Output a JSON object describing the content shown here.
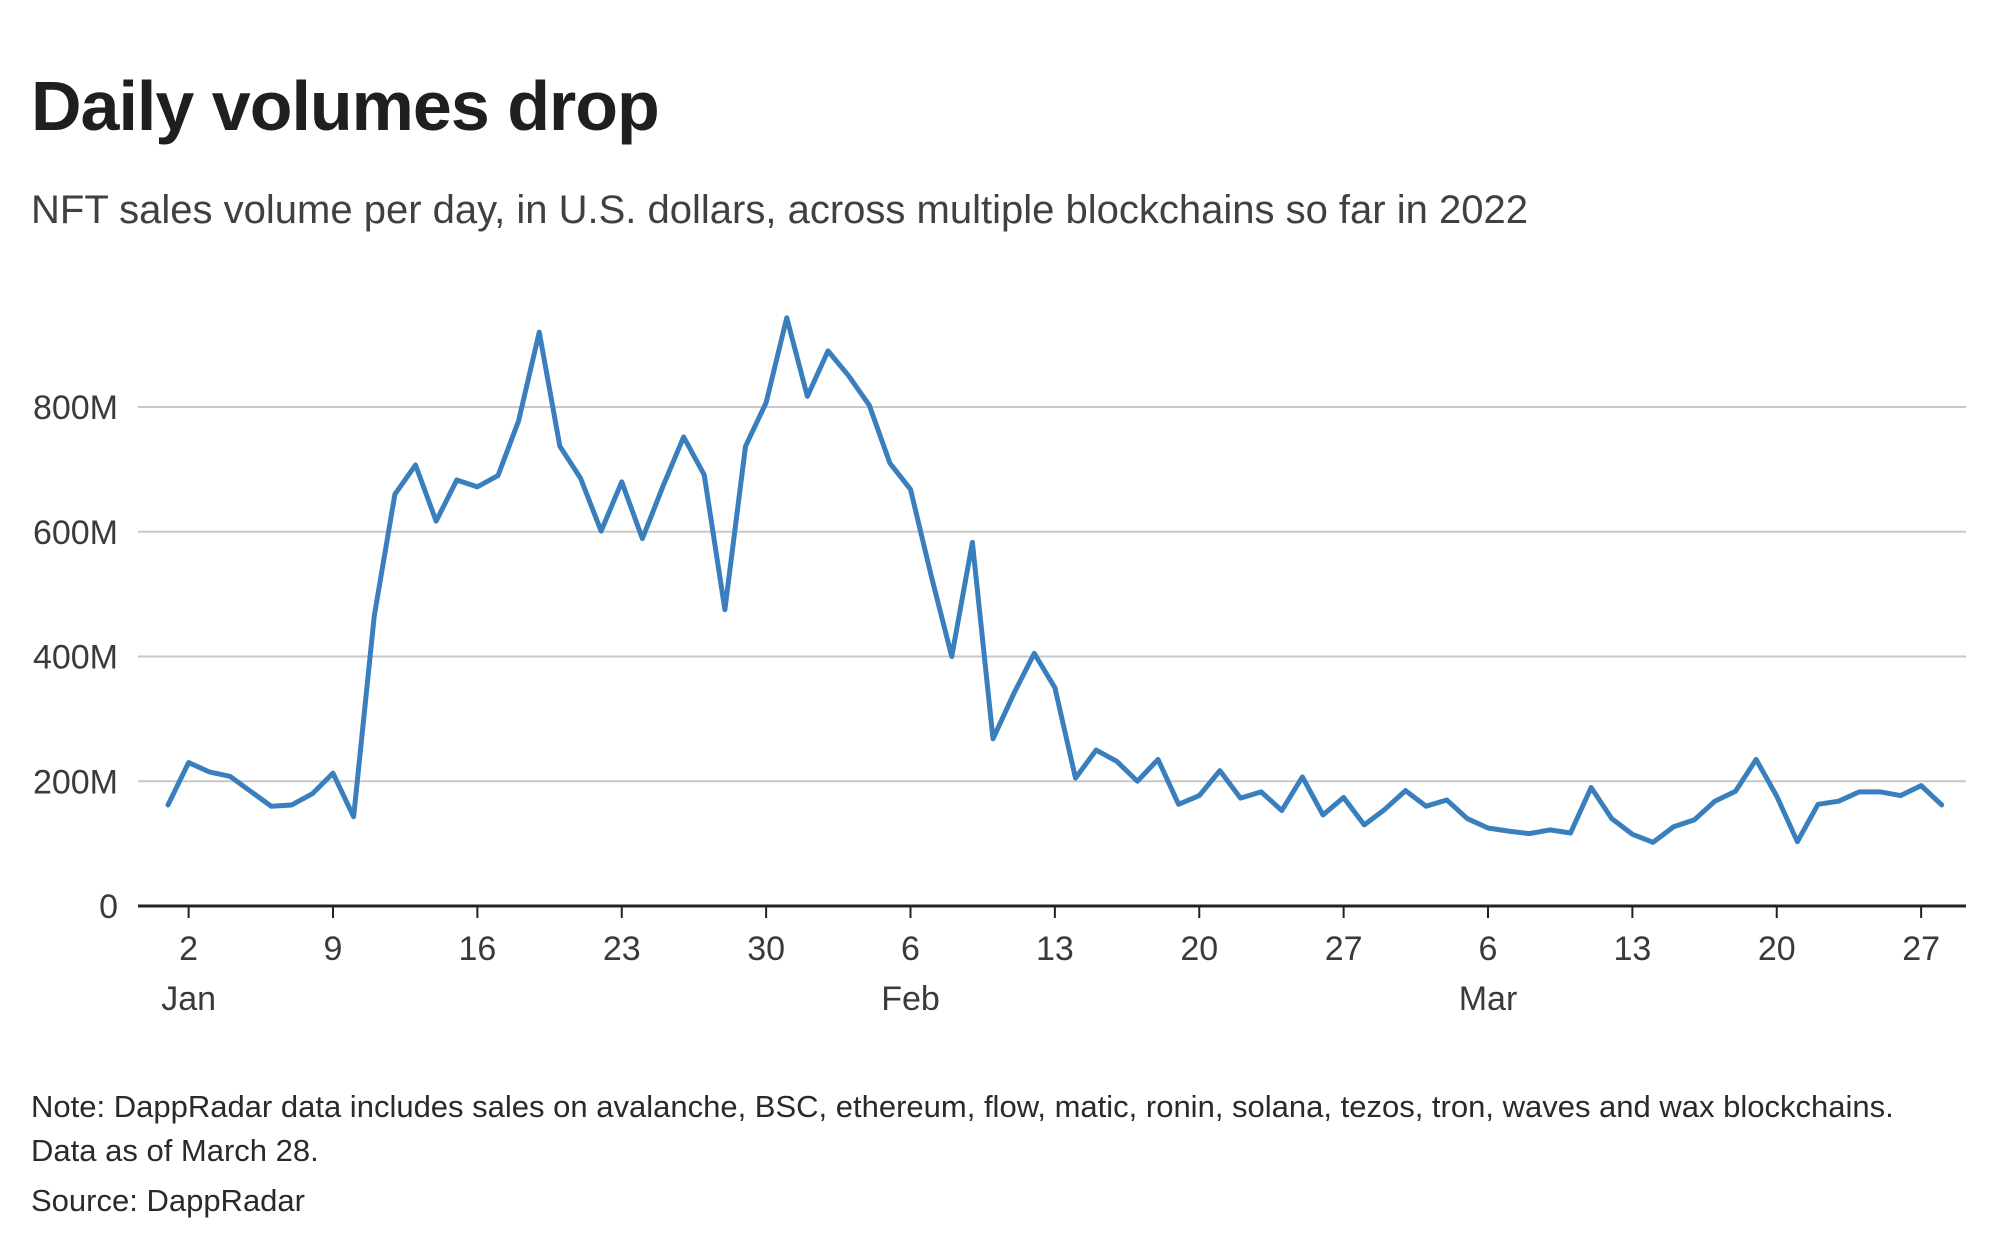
{
  "header": {
    "title": "Daily volumes drop",
    "subtitle": "NFT sales volume per day, in U.S. dollars, across multiple blockchains so far in 2022"
  },
  "footer": {
    "note": "Note: DappRadar data includes sales on avalanche, BSC, ethereum, flow, matic, ronin, solana, tezos, tron, waves and wax blockchains. Data as of March 28.",
    "source": "Source: DappRadar"
  },
  "colors": {
    "line": "#3a7fbd",
    "grid": "#c8c8c8",
    "axis": "#222222"
  },
  "chart_data": {
    "type": "line",
    "title": "Daily volumes drop",
    "xlabel": "",
    "ylabel": "",
    "ylim": [
      0,
      1000000000
    ],
    "grid": true,
    "y_ticks": [
      {
        "value": 0,
        "label": "0"
      },
      {
        "value": 200000000,
        "label": "200M"
      },
      {
        "value": 400000000,
        "label": "400M"
      },
      {
        "value": 600000000,
        "label": "600M"
      },
      {
        "value": 800000000,
        "label": "800M"
      }
    ],
    "x_range": [
      0,
      86
    ],
    "x_ticks": [
      {
        "day": 1,
        "label": "2",
        "month": "Jan"
      },
      {
        "day": 8,
        "label": "9"
      },
      {
        "day": 15,
        "label": "16"
      },
      {
        "day": 22,
        "label": "23"
      },
      {
        "day": 29,
        "label": "30"
      },
      {
        "day": 36,
        "label": "6",
        "month": "Feb"
      },
      {
        "day": 43,
        "label": "13"
      },
      {
        "day": 50,
        "label": "20"
      },
      {
        "day": 57,
        "label": "27"
      },
      {
        "day": 64,
        "label": "6",
        "month": "Mar"
      },
      {
        "day": 71,
        "label": "13"
      },
      {
        "day": 78,
        "label": "20"
      },
      {
        "day": 85,
        "label": "27"
      }
    ],
    "x_note": "x = days since Jan 1, 2022 (0 = Jan 1)",
    "series": [
      {
        "name": "NFT sales volume per day",
        "x": [
          0,
          1,
          2,
          3,
          4,
          5,
          6,
          7,
          8,
          9,
          10,
          11,
          12,
          13,
          14,
          15,
          16,
          17,
          18,
          19,
          20,
          21,
          22,
          23,
          24,
          25,
          26,
          27,
          28,
          29,
          30,
          31,
          32,
          33,
          34,
          35,
          36,
          37,
          38,
          39,
          40,
          41,
          42,
          43,
          44,
          45,
          46,
          47,
          48,
          49,
          50,
          51,
          52,
          53,
          54,
          55,
          56,
          57,
          58,
          59,
          60,
          61,
          62,
          63,
          64,
          65,
          66,
          67,
          68,
          69,
          70,
          71,
          72,
          73,
          74,
          75,
          76,
          77,
          78,
          79,
          80,
          81,
          82,
          83,
          84,
          85,
          86
        ],
        "values": [
          162000000,
          230000000,
          215000000,
          208000000,
          184000000,
          160000000,
          162000000,
          180000000,
          213000000,
          143000000,
          465000000,
          660000000,
          707000000,
          617000000,
          683000000,
          672000000,
          690000000,
          778000000,
          920000000,
          737000000,
          686000000,
          601000000,
          680000000,
          589000000,
          673000000,
          752000000,
          691000000,
          475000000,
          737000000,
          807000000,
          943000000,
          817000000,
          890000000,
          850000000,
          803000000,
          710000000,
          668000000,
          530000000,
          400000000,
          583000000,
          268000000,
          340000000,
          405000000,
          350000000,
          205000000,
          250000000,
          232000000,
          200000000,
          235000000,
          163000000,
          177000000,
          217000000,
          173000000,
          183000000,
          153000000,
          207000000,
          146000000,
          174000000,
          130000000,
          155000000,
          185000000,
          160000000,
          170000000,
          140000000,
          125000000,
          120000000,
          116000000,
          122000000,
          117000000,
          190000000,
          140000000,
          115000000,
          102000000,
          127000000,
          138000000,
          168000000,
          184000000,
          235000000,
          176000000,
          103000000,
          163000000,
          168000000,
          183000000,
          183000000,
          177000000,
          193000000,
          162000000
        ]
      }
    ]
  }
}
